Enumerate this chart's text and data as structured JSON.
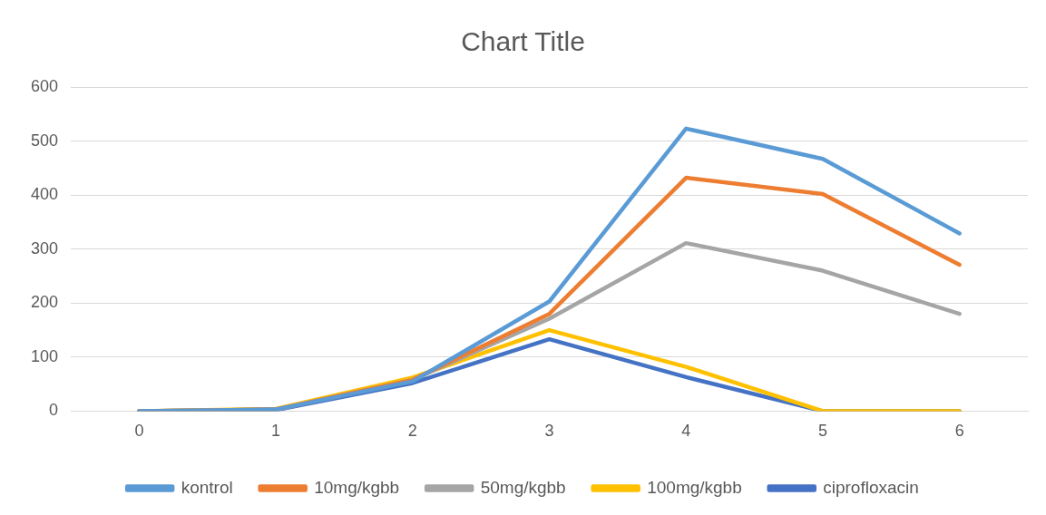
{
  "chart_data": {
    "type": "line",
    "title": "Chart Title",
    "categories": [
      "0",
      "1",
      "2",
      "3",
      "4",
      "5",
      "6"
    ],
    "series": [
      {
        "name": "kontrol",
        "color": "#5b9bd5",
        "values": [
          0,
          3,
          55,
          203,
          523,
          467,
          329
        ]
      },
      {
        "name": "10mg/kgbb",
        "color": "#ed7d31",
        "values": [
          0,
          3,
          58,
          180,
          432,
          402,
          271
        ]
      },
      {
        "name": "50mg/kgbb",
        "color": "#a5a5a5",
        "values": [
          0,
          3,
          58,
          171,
          311,
          260,
          180
        ]
      },
      {
        "name": "100mg/kgbb",
        "color": "#ffc000",
        "values": [
          0,
          4,
          62,
          150,
          82,
          0,
          0
        ]
      },
      {
        "name": "ciprofloxacin",
        "color": "#4472c4",
        "values": [
          0,
          2,
          52,
          133,
          63,
          0,
          0
        ]
      }
    ],
    "ylim": [
      0,
      600
    ],
    "yticks": [
      0,
      100,
      200,
      300,
      400,
      500,
      600
    ],
    "grid": "y",
    "legend": "bottom",
    "marker": "none",
    "line_style": "solid"
  }
}
